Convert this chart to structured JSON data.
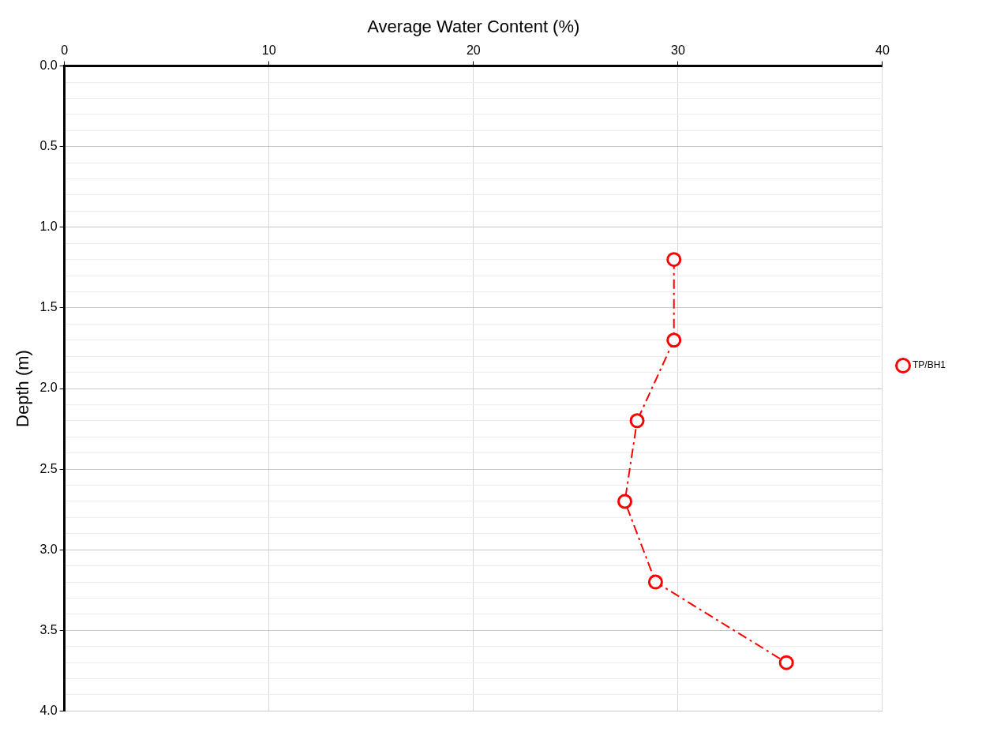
{
  "chart_data": {
    "type": "line",
    "xlabel": "Average Water Content (%)",
    "ylabel": "Depth (m)",
    "xlim": [
      0,
      40
    ],
    "xticks": [
      0,
      10,
      20,
      30,
      40
    ],
    "ylim": [
      4.0,
      0.0
    ],
    "yticks": [
      {
        "value": 0,
        "label": "0.0"
      },
      {
        "value": 0.1,
        "label": null
      },
      {
        "value": 0.2,
        "label": null
      },
      {
        "value": 0.3,
        "label": null
      },
      {
        "value": 0.4,
        "label": null
      },
      {
        "value": 0.5,
        "label": "0.5"
      },
      {
        "value": 0.6,
        "label": null
      },
      {
        "value": 0.7,
        "label": null
      },
      {
        "value": 0.8,
        "label": null
      },
      {
        "value": 0.9,
        "label": null
      },
      {
        "value": 1.0,
        "label": "1.0"
      },
      {
        "value": 1.1,
        "label": null
      },
      {
        "value": 1.2,
        "label": null
      },
      {
        "value": 1.3,
        "label": null
      },
      {
        "value": 1.4,
        "label": null
      },
      {
        "value": 1.5,
        "label": "1.5"
      },
      {
        "value": 1.6,
        "label": null
      },
      {
        "value": 1.7,
        "label": null
      },
      {
        "value": 1.8,
        "label": null
      },
      {
        "value": 1.9,
        "label": null
      },
      {
        "value": 2.0,
        "label": "2.0"
      },
      {
        "value": 2.1,
        "label": null
      },
      {
        "value": 2.2,
        "label": null
      },
      {
        "value": 2.3,
        "label": null
      },
      {
        "value": 2.4,
        "label": null
      },
      {
        "value": 2.5,
        "label": "2.5"
      },
      {
        "value": 2.6,
        "label": null
      },
      {
        "value": 2.7,
        "label": null
      },
      {
        "value": 2.8,
        "label": null
      },
      {
        "value": 2.9,
        "label": null
      },
      {
        "value": 3.0,
        "label": "3.0"
      },
      {
        "value": 3.1,
        "label": null
      },
      {
        "value": 3.2,
        "label": null
      },
      {
        "value": 3.3,
        "label": null
      },
      {
        "value": 3.4,
        "label": null
      },
      {
        "value": 3.5,
        "label": "3.5"
      },
      {
        "value": 3.6,
        "label": null
      },
      {
        "value": 3.7,
        "label": null
      },
      {
        "value": 3.8,
        "label": null
      },
      {
        "value": 3.9,
        "label": null
      },
      {
        "value": 4.0,
        "label": "4.0"
      }
    ],
    "series": [
      {
        "name": "TP/BH1",
        "color": "#ff0000",
        "x": [
          29.8,
          29.8,
          28.0,
          27.4,
          28.9,
          35.3
        ],
        "values": [
          1.2,
          1.7,
          2.2,
          2.7,
          3.2,
          3.7
        ]
      }
    ],
    "marker": "circle",
    "line_style": "dashed",
    "grid": true,
    "legend": "right"
  }
}
